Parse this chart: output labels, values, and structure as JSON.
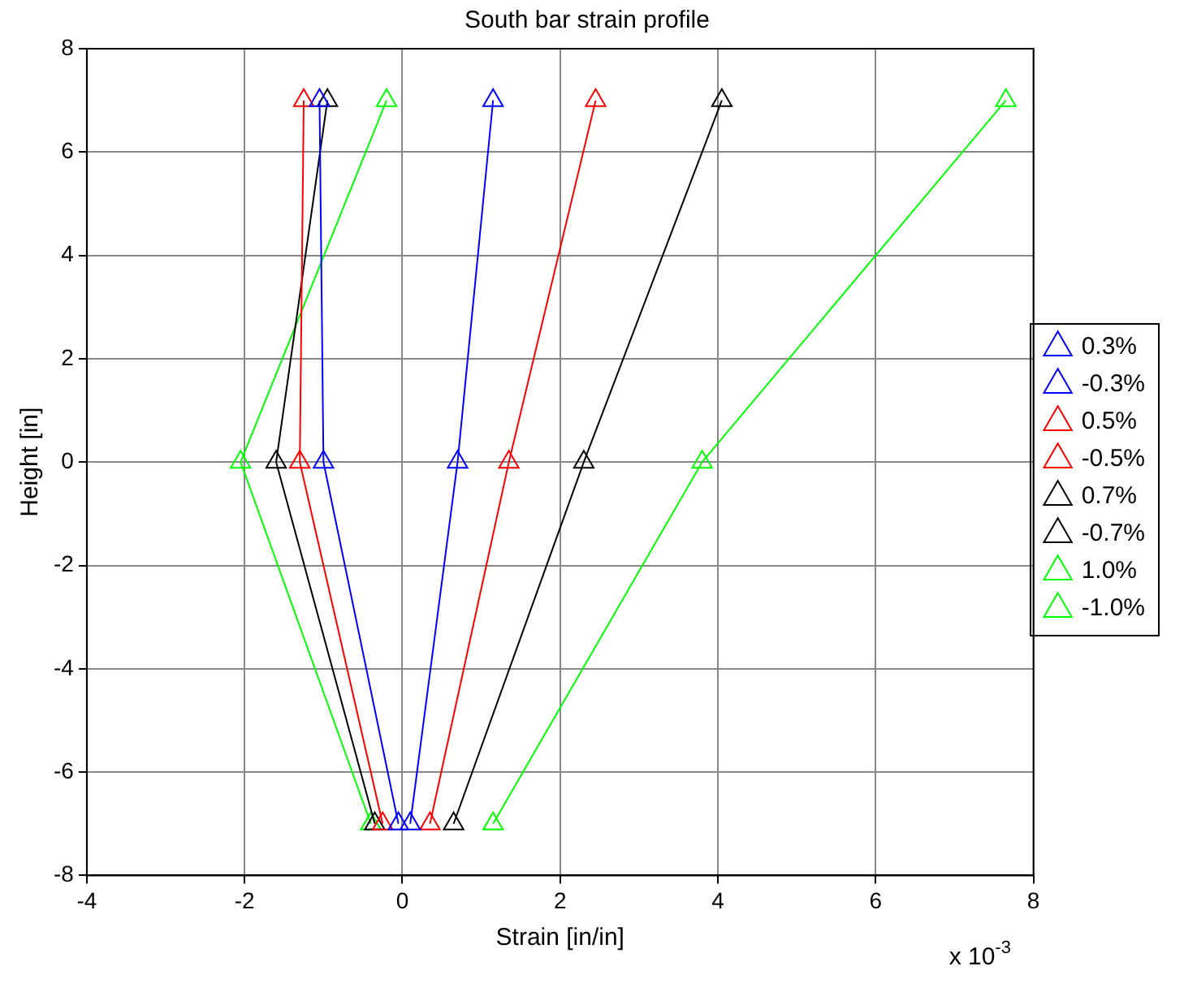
{
  "chart_data": {
    "type": "line",
    "title": "South bar strain profile",
    "xlabel": "Strain [in/in]",
    "ylabel": "Height [in]",
    "annotations": [
      "x 10$^{-3}$"
    ],
    "xlim": [
      -4,
      8
    ],
    "xticks": [
      -4,
      -2,
      0,
      2,
      4,
      6,
      8
    ],
    "ylim": [
      -8,
      8
    ],
    "yticks": [
      -8,
      -6,
      -4,
      -2,
      0,
      2,
      4,
      6,
      8
    ],
    "grid": true,
    "legend": "right",
    "marker": "triangle",
    "line_style": "solid",
    "series": [
      {
        "name": "0.3%",
        "color": "#0000ff",
        "x": [
          1.15,
          0.7,
          0.1
        ],
        "values": [
          7,
          0,
          -7
        ]
      },
      {
        "name": "-0.3%",
        "color": "#0000ff",
        "x": [
          -1.05,
          -1.0,
          -0.05
        ],
        "values": [
          7,
          0,
          -7
        ]
      },
      {
        "name": "0.5%",
        "color": "#ff0000",
        "x": [
          2.45,
          1.35,
          0.35
        ],
        "values": [
          7,
          0,
          -7
        ]
      },
      {
        "name": "-0.5%",
        "color": "#ff0000",
        "x": [
          -1.25,
          -1.3,
          -0.25
        ],
        "values": [
          7,
          0,
          -7
        ]
      },
      {
        "name": "0.7%",
        "color": "#000000",
        "x": [
          4.05,
          2.3,
          0.65
        ],
        "values": [
          7,
          0,
          -7
        ]
      },
      {
        "name": "-0.7%",
        "color": "#000000",
        "x": [
          -0.95,
          -1.6,
          -0.35
        ],
        "values": [
          7,
          0,
          -7
        ]
      },
      {
        "name": "1.0%",
        "color": "#00ff00",
        "x": [
          7.65,
          3.8,
          1.15
        ],
        "values": [
          7,
          0,
          -7
        ]
      },
      {
        "name": "-1.0%",
        "color": "#00ff00",
        "x": [
          -0.2,
          -2.05,
          -0.4
        ],
        "values": [
          7,
          0,
          -7
        ]
      }
    ]
  }
}
